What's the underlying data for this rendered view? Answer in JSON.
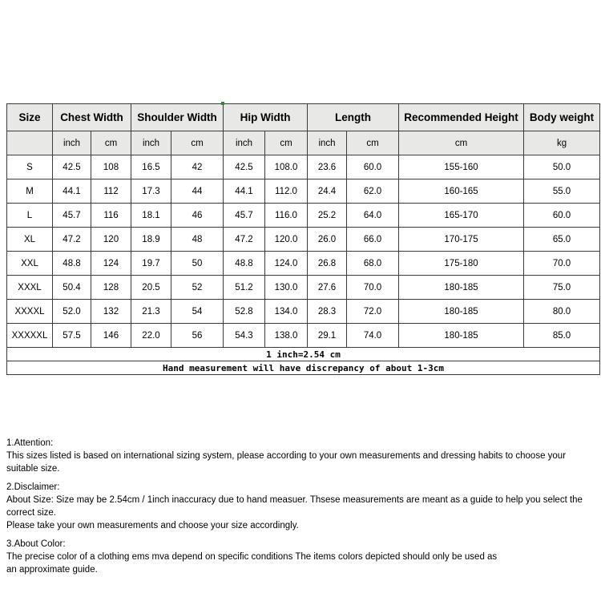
{
  "size_chart": {
    "headers": {
      "size": "Size",
      "chest": "Chest Width",
      "shoulder": "Shoulder Width",
      "hip": "Hip Width",
      "length": "Length",
      "height": "Recommended Height",
      "weight": "Body weight"
    },
    "subheaders": [
      "",
      "inch",
      "cm",
      "inch",
      "cm",
      "inch",
      "cm",
      "inch",
      "cm",
      "cm",
      "kg"
    ],
    "rows": [
      [
        "S",
        "42.5",
        "108",
        "16.5",
        "42",
        "42.5",
        "108.0",
        "23.6",
        "60.0",
        "155-160",
        "50.0"
      ],
      [
        "M",
        "44.1",
        "112",
        "17.3",
        "44",
        "44.1",
        "112.0",
        "24.4",
        "62.0",
        "160-165",
        "55.0"
      ],
      [
        "L",
        "45.7",
        "116",
        "18.1",
        "46",
        "45.7",
        "116.0",
        "25.2",
        "64.0",
        "165-170",
        "60.0"
      ],
      [
        "XL",
        "47.2",
        "120",
        "18.9",
        "48",
        "47.2",
        "120.0",
        "26.0",
        "66.0",
        "170-175",
        "65.0"
      ],
      [
        "XXL",
        "48.8",
        "124",
        "19.7",
        "50",
        "48.8",
        "124.0",
        "26.8",
        "68.0",
        "175-180",
        "70.0"
      ],
      [
        "XXXL",
        "50.4",
        "128",
        "20.5",
        "52",
        "51.2",
        "130.0",
        "27.6",
        "70.0",
        "180-185",
        "75.0"
      ],
      [
        "XXXXL",
        "52.0",
        "132",
        "21.3",
        "54",
        "52.8",
        "134.0",
        "28.3",
        "72.0",
        "180-185",
        "80.0"
      ],
      [
        "XXXXXL",
        "57.5",
        "146",
        "22.0",
        "56",
        "54.3",
        "138.0",
        "29.1",
        "74.0",
        "180-185",
        "85.0"
      ]
    ],
    "footnotes": [
      "1 inch=2.54 cm",
      "Hand measurement will have discrepancy of about 1-3cm"
    ]
  },
  "notes": [
    {
      "heading": "1.Attention:",
      "lines": [
        "This sizes listed is based on international sizing system, please according to your own measurements and dressing habits to choose your suitable size."
      ]
    },
    {
      "heading": "2.Disclaimer:",
      "lines": [
        "About Size: Size may be 2.54cm / 1inch inaccuracy due to hand measuer. Thsese measurements are meant as a guide to help you select the correct size.",
        "Please take your own measurements and choose your size accordingly."
      ]
    },
    {
      "heading": "3.About Color:",
      "lines": [
        "The precise color of a clothing ems mva depend on specific conditions The items colors depicted should only be used as",
        "an approximate guide."
      ]
    }
  ],
  "colors": {
    "header_bg": "#e8e8e6",
    "border": "#3c3c3c",
    "text": "#000000",
    "marker_green": "#2e8b2e"
  }
}
